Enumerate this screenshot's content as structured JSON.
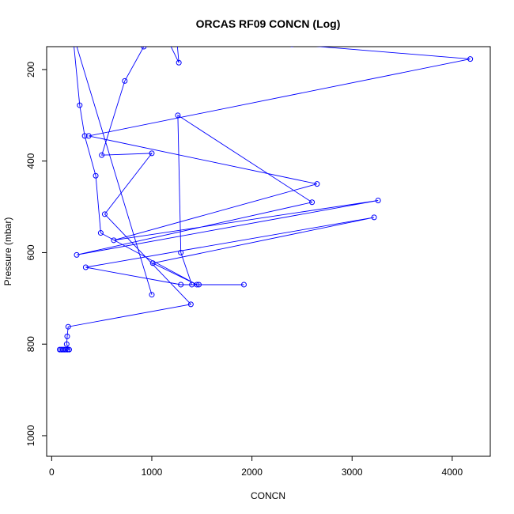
{
  "chart_data": {
    "type": "line",
    "title": "ORCAS RF09 CONCN (Log)",
    "xlabel": "CONCN",
    "ylabel": "Pressure (mbar)",
    "xlim": [
      -50,
      4380
    ],
    "ylim": [
      1045,
      150
    ],
    "y_inverted": true,
    "xticks": [
      0,
      1000,
      2000,
      3000,
      4000
    ],
    "yticks": [
      200,
      400,
      600,
      800,
      1000
    ],
    "grid": false,
    "legend": "none",
    "color": "#0000ff",
    "series": [
      {
        "points": [
          [
            80,
            812
          ],
          [
            95,
            812
          ],
          [
            110,
            812
          ],
          [
            125,
            812
          ],
          [
            140,
            812
          ],
          [
            160,
            812
          ],
          [
            175,
            812
          ],
          [
            150,
            800
          ],
          [
            155,
            783
          ],
          [
            165,
            762
          ],
          [
            1390,
            713
          ],
          [
            530,
            516
          ],
          [
            1000,
            383
          ],
          [
            500,
            387
          ],
          [
            730,
            225
          ],
          [
            920,
            150
          ],
          [
            1250,
            135
          ],
          [
            1270,
            185
          ],
          [
            1080,
            100
          ],
          [
            1510,
            125
          ],
          [
            1710,
            110
          ],
          [
            2400,
            145
          ],
          [
            4180,
            177
          ],
          [
            370,
            345
          ],
          [
            2650,
            450
          ],
          [
            620,
            573
          ],
          [
            3260,
            486
          ],
          [
            250,
            605
          ],
          [
            2600,
            490
          ],
          [
            1260,
            300
          ],
          [
            1290,
            600
          ],
          [
            1400,
            670
          ],
          [
            1920,
            670
          ],
          [
            1470,
            670
          ],
          [
            1290,
            670
          ],
          [
            340,
            632
          ],
          [
            3220,
            523
          ],
          [
            1010,
            623
          ],
          [
            1450,
            670
          ],
          [
            490,
            557
          ],
          [
            440,
            432
          ],
          [
            330,
            345
          ],
          [
            280,
            278
          ],
          [
            210,
            120
          ],
          [
            1000,
            692
          ]
        ]
      }
    ]
  }
}
